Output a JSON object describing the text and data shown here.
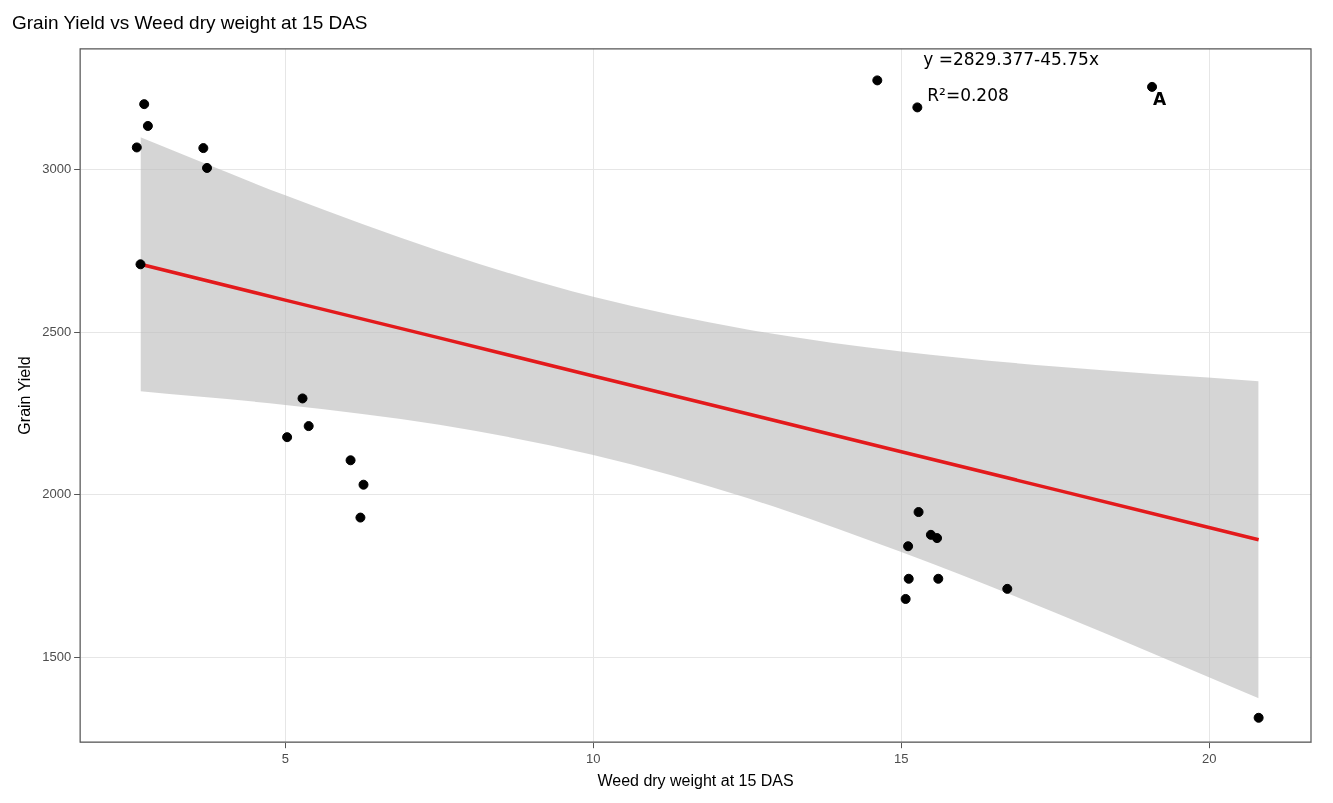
{
  "chart_data": {
    "type": "scatter",
    "title": "Grain Yield vs Weed dry weight at 15 DAS",
    "xlabel": "Weed dry weight at 15 DAS",
    "ylabel": "Grain Yield",
    "x": [
      2.71,
      2.77,
      2.59,
      2.65,
      3.67,
      3.73,
      5.28,
      5.38,
      5.03,
      6.06,
      6.27,
      6.22,
      14.61,
      15.26,
      19.07,
      15.28,
      15.11,
      15.48,
      15.58,
      15.12,
      15.6,
      15.07,
      16.72,
      20.8
    ],
    "series": [
      {
        "color": "#000000",
        "marker": "circle",
        "values": [
          3200,
          3133,
          3067,
          2708,
          3065,
          3004,
          2296,
          2211,
          2177,
          2106,
          2031,
          1930,
          3273,
          3190,
          3253,
          1947,
          1842,
          1877,
          1867,
          1742,
          1742,
          1680,
          1711,
          1315
        ]
      },
      {
        "type": "line",
        "marker": "none",
        "color": "#e31a1c",
        "x": [
          2.65,
          5,
          7.5,
          10,
          12.5,
          15,
          17.5,
          20.8
        ],
        "values": [
          2708,
          2598,
          2482,
          2365,
          2249,
          2132,
          2016,
          1862
        ],
        "lower": [
          2318,
          2276,
          2215,
          2122,
          1990,
          1824,
          1638,
          1375
        ],
        "upper": [
          3098,
          2920,
          2749,
          2608,
          2508,
          2440,
          2394,
          2349
        ]
      }
    ],
    "annotations": [
      "y =2829.377-45.75x",
      "R²=0.208",
      {
        "text": "A",
        "x": 19.07,
        "y": 3253
      }
    ],
    "xlim": [
      1.67,
      21.65
    ],
    "xticks": [
      5,
      10,
      15,
      20
    ],
    "ylim": [
      1240,
      3370
    ],
    "yticks": [
      1500,
      2000,
      2500,
      3000
    ],
    "grid": true,
    "legend": false
  }
}
